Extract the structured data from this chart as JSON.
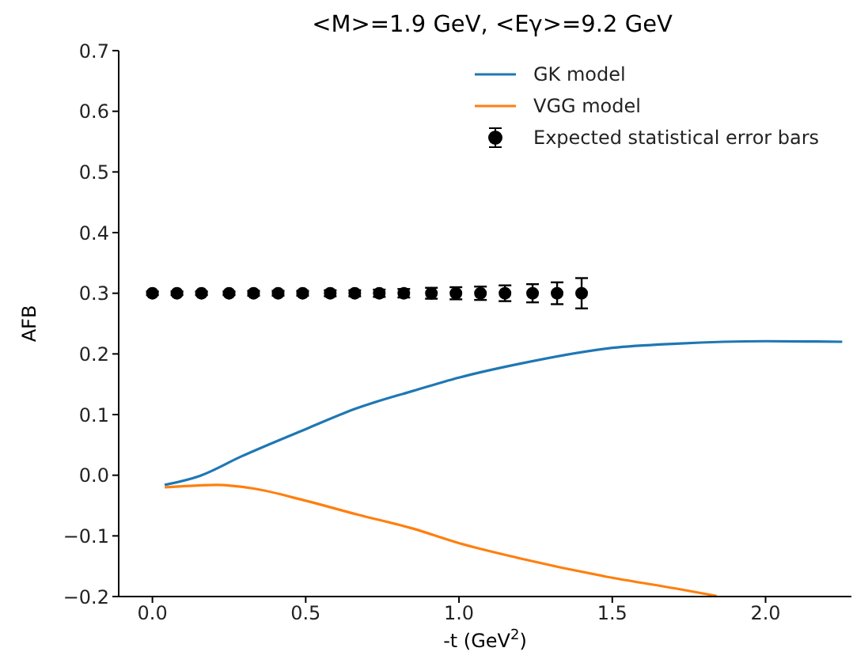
{
  "chart_data": {
    "type": "line",
    "title": "<M>=1.9 GeV, <Eγ>=9.2 GeV",
    "xlabel": "-t (GeV$^{2}$)",
    "ylabel": "AFB",
    "xlim": [
      -0.11,
      2.28
    ],
    "xticks": [
      {
        "value": 0,
        "label": "0.0"
      },
      0.5,
      {
        "value": 1,
        "label": "1.0"
      },
      1.5,
      {
        "value": 2,
        "label": "2.0"
      }
    ],
    "ylim": [
      -0.2,
      0.7
    ],
    "yticks": [
      {
        "value": -0.2,
        "label": "−0.2"
      },
      {
        "value": -0.1,
        "label": "−0.1"
      },
      {
        "value": 0,
        "label": "0.0"
      },
      0.1,
      0.2,
      0.3,
      0.4,
      0.5,
      0.6,
      0.7
    ],
    "grid": false,
    "legend": "top right",
    "series": [
      {
        "name": "GK model",
        "color": "#1f77b4",
        "x": [
          0.04,
          0.155,
          0.29,
          0.5,
          0.67,
          0.85,
          1.0,
          1.19,
          1.5,
          1.71,
          2.0,
          2.25
        ],
        "values": [
          -0.016,
          -0.001,
          0.031,
          0.076,
          0.111,
          0.139,
          0.161,
          0.183,
          0.21,
          0.217,
          0.221,
          0.22
        ]
      },
      {
        "name": "VGG model",
        "color": "#ff7f0e",
        "x": [
          0.04,
          0.21,
          0.33,
          0.5,
          0.67,
          0.85,
          1.0,
          1.19,
          1.5,
          1.71,
          1.84
        ],
        "values": [
          -0.02,
          -0.016,
          -0.022,
          -0.042,
          -0.065,
          -0.088,
          -0.112,
          -0.136,
          -0.169,
          -0.187,
          -0.199
        ]
      },
      {
        "name": "Expected statistical error bars",
        "type": "scatter",
        "color": "#000000",
        "marker": "circle",
        "x": [
          0,
          0.08,
          0.16,
          0.25,
          0.33,
          0.41,
          0.49,
          0.58,
          0.66,
          0.74,
          0.82,
          0.91,
          0.99,
          1.07,
          1.15,
          1.24,
          1.32,
          1.4
        ],
        "values": [
          0.3,
          0.3,
          0.3,
          0.3,
          0.3,
          0.3,
          0.3,
          0.3,
          0.3,
          0.3,
          0.3,
          0.3,
          0.3,
          0.3,
          0.3,
          0.3,
          0.3,
          0.3
        ],
        "errors": [
          0.003,
          0.003,
          0.003,
          0.003,
          0.004,
          0.004,
          0.004,
          0.005,
          0.005,
          0.006,
          0.007,
          0.009,
          0.01,
          0.011,
          0.013,
          0.015,
          0.018,
          0.025
        ]
      }
    ]
  }
}
